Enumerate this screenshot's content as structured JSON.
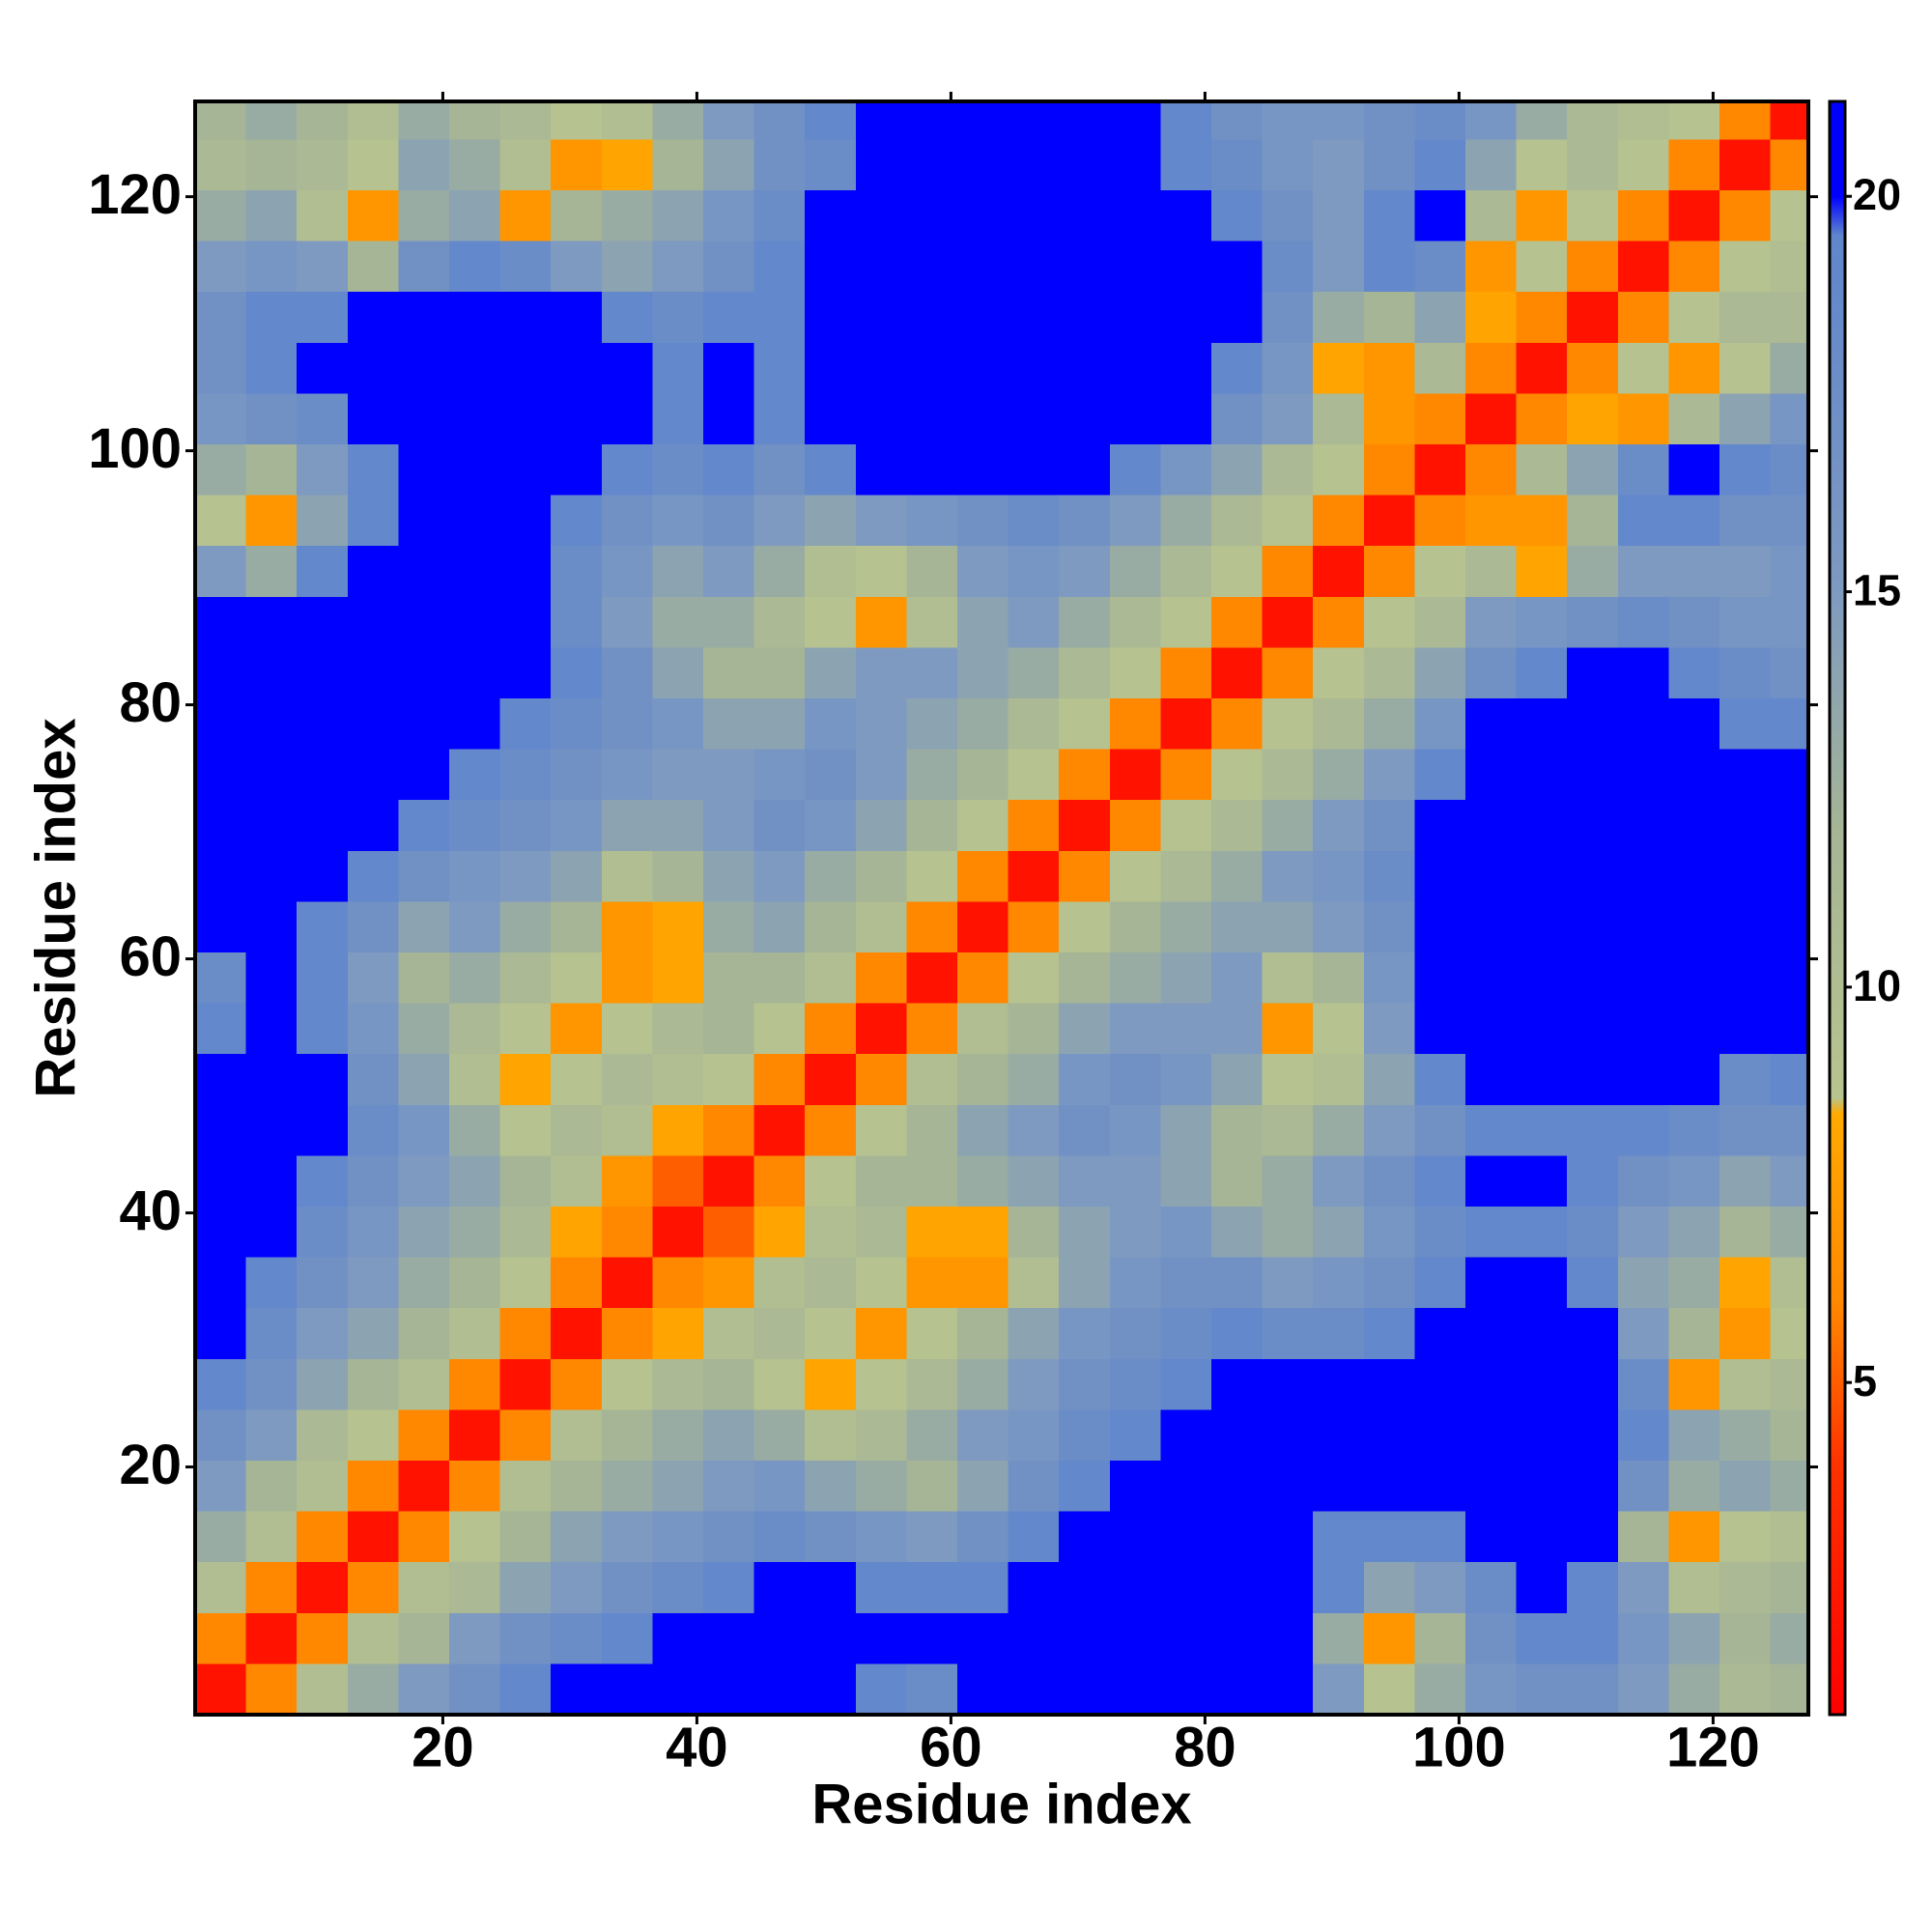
{
  "chart_data": {
    "type": "heatmap",
    "xlabel": "Residue index",
    "ylabel": "Residue index",
    "x_bins": [
      0.5,
      4.5,
      8.5,
      12.5,
      16.5,
      20.5,
      24.5,
      28.5,
      32.5,
      36.5,
      40.5,
      44.5,
      48.5,
      52.5,
      56.5,
      60.5,
      64.5,
      68.5,
      72.5,
      76.5,
      80.5,
      84.5,
      88.5,
      92.5,
      96.5,
      100.5,
      104.5,
      108.5,
      112.5,
      116.5,
      120.5,
      124.5,
      127.5
    ],
    "y_bins": [
      0.5,
      4.5,
      8.5,
      12.5,
      16.5,
      20.5,
      24.5,
      28.5,
      32.5,
      36.5,
      40.5,
      44.5,
      48.5,
      52.5,
      56.5,
      60.5,
      64.5,
      68.5,
      72.5,
      76.5,
      80.5,
      84.5,
      88.5,
      92.5,
      96.5,
      100.5,
      104.5,
      108.5,
      112.5,
      116.5,
      120.5,
      124.5,
      127.5
    ],
    "values": [
      [
        2,
        6,
        10,
        13,
        15,
        17,
        19,
        20,
        21,
        21,
        21,
        21,
        20,
        19,
        18,
        20,
        21,
        21,
        21,
        21,
        21,
        20,
        15,
        9,
        13,
        16,
        17,
        17,
        15,
        13,
        11,
        12
      ],
      [
        6,
        2,
        6,
        10,
        12,
        15,
        17,
        18,
        19,
        20,
        21,
        21,
        21,
        20,
        20,
        21,
        21,
        21,
        21,
        21,
        21,
        21,
        13,
        7,
        12,
        17,
        19,
        19,
        16,
        14,
        12,
        13
      ],
      [
        10,
        6,
        2,
        6,
        10,
        11,
        14,
        15,
        17,
        18,
        19,
        20,
        20,
        19,
        19,
        19,
        21,
        21,
        21,
        21,
        21,
        21,
        19,
        14,
        15,
        18,
        20,
        19,
        15,
        10,
        11,
        12
      ],
      [
        13,
        10,
        6,
        2,
        6,
        9,
        12,
        14,
        15,
        16,
        17,
        18,
        17,
        16,
        15,
        17,
        19,
        21,
        21,
        21,
        21,
        21,
        19,
        19,
        19,
        21,
        21,
        21,
        12,
        7,
        9,
        10
      ],
      [
        15,
        12,
        10,
        6,
        2,
        6,
        10,
        12,
        13,
        14,
        15,
        16,
        14,
        13,
        12,
        14,
        17,
        19,
        21,
        21,
        21,
        21,
        21,
        21,
        21,
        21,
        21,
        21,
        17,
        13,
        14,
        13
      ],
      [
        17,
        15,
        11,
        9,
        6,
        2,
        6,
        10,
        12,
        13,
        14,
        13,
        10,
        11,
        13,
        15,
        16,
        18,
        19,
        20,
        21,
        21,
        21,
        21,
        21,
        21,
        21,
        21,
        19,
        14,
        13,
        12
      ],
      [
        19,
        17,
        14,
        12,
        10,
        6,
        2,
        6,
        9,
        11,
        12,
        9,
        8,
        9,
        11,
        13,
        15,
        17,
        18,
        19,
        20,
        20,
        20,
        21,
        21,
        21,
        21,
        21,
        18,
        7,
        10,
        11
      ],
      [
        20,
        18,
        15,
        14,
        12,
        10,
        6,
        2,
        6,
        8,
        10,
        11,
        9,
        7,
        9,
        12,
        14,
        16,
        17,
        18,
        19,
        18,
        18,
        19,
        20,
        21,
        21,
        20,
        15,
        12,
        7,
        9
      ],
      [
        21,
        19,
        17,
        15,
        13,
        12,
        9,
        6,
        2,
        6,
        7,
        10,
        11,
        9,
        7,
        7,
        10,
        14,
        16,
        17,
        17,
        15,
        16,
        17,
        19,
        20,
        20,
        19,
        14,
        13,
        8,
        10
      ],
      [
        21,
        20,
        18,
        16,
        14,
        13,
        11,
        8,
        6,
        2,
        5,
        8,
        10,
        11,
        8,
        8,
        12,
        14,
        15,
        16,
        14,
        13,
        14,
        16,
        18,
        19,
        19,
        18,
        15,
        14,
        12,
        13
      ],
      [
        21,
        21,
        19,
        17,
        15,
        14,
        12,
        10,
        7,
        5,
        2,
        6,
        9,
        12,
        12,
        13,
        14,
        15,
        15,
        14,
        12,
        13,
        15,
        17,
        19,
        20,
        20,
        19,
        17,
        16,
        14,
        15
      ],
      [
        21,
        21,
        20,
        18,
        16,
        13,
        9,
        11,
        10,
        8,
        6,
        2,
        6,
        9,
        12,
        14,
        15,
        17,
        16,
        14,
        12,
        11,
        13,
        15,
        17,
        19,
        19,
        19,
        19,
        18,
        17,
        17
      ],
      [
        20,
        21,
        20,
        17,
        14,
        10,
        8,
        9,
        11,
        10,
        9,
        6,
        2,
        6,
        10,
        12,
        13,
        16,
        17,
        16,
        14,
        9,
        10,
        14,
        19,
        20,
        21,
        21,
        21,
        20,
        18,
        19
      ],
      [
        19,
        20,
        19,
        16,
        13,
        11,
        9,
        7,
        9,
        11,
        12,
        9,
        6,
        2,
        6,
        10,
        12,
        14,
        15,
        15,
        15,
        7,
        9,
        15,
        21,
        21,
        21,
        21,
        21,
        21,
        20,
        20
      ],
      [
        18,
        20,
        19,
        15,
        12,
        13,
        11,
        9,
        7,
        8,
        12,
        12,
        10,
        6,
        2,
        6,
        9,
        12,
        13,
        14,
        15,
        10,
        12,
        16,
        21,
        21,
        21,
        21,
        21,
        21,
        21,
        21
      ],
      [
        20,
        21,
        19,
        17,
        14,
        15,
        13,
        12,
        7,
        8,
        13,
        14,
        12,
        10,
        6,
        2,
        6,
        9,
        12,
        13,
        14,
        14,
        15,
        17,
        21,
        21,
        21,
        21,
        21,
        21,
        21,
        21
      ],
      [
        21,
        21,
        21,
        19,
        17,
        16,
        15,
        14,
        10,
        12,
        14,
        15,
        13,
        12,
        9,
        6,
        2,
        6,
        9,
        11,
        13,
        15,
        16,
        18,
        21,
        21,
        21,
        21,
        21,
        21,
        21,
        21
      ],
      [
        21,
        21,
        21,
        21,
        19,
        18,
        17,
        16,
        14,
        14,
        15,
        17,
        16,
        14,
        12,
        9,
        6,
        2,
        6,
        9,
        11,
        13,
        15,
        17,
        21,
        21,
        21,
        21,
        21,
        21,
        21,
        21
      ],
      [
        21,
        21,
        21,
        21,
        21,
        19,
        18,
        17,
        16,
        15,
        15,
        16,
        17,
        15,
        13,
        12,
        9,
        6,
        2,
        6,
        9,
        11,
        13,
        15,
        19,
        21,
        21,
        21,
        21,
        21,
        20,
        20
      ],
      [
        21,
        21,
        21,
        21,
        21,
        20,
        19,
        18,
        17,
        16,
        14,
        14,
        16,
        15,
        14,
        13,
        11,
        9,
        6,
        2,
        6,
        9,
        11,
        13,
        16,
        20,
        21,
        21,
        21,
        20,
        19,
        19
      ],
      [
        21,
        21,
        21,
        21,
        21,
        21,
        20,
        19,
        17,
        14,
        12,
        12,
        14,
        15,
        15,
        14,
        13,
        11,
        9,
        6,
        2,
        6,
        9,
        11,
        14,
        17,
        19,
        20,
        20,
        19,
        18,
        17
      ],
      [
        20,
        21,
        21,
        21,
        21,
        21,
        20,
        18,
        15,
        13,
        13,
        11,
        9,
        7,
        10,
        14,
        15,
        13,
        11,
        9,
        6,
        2,
        6,
        9,
        11,
        15,
        16,
        17,
        18,
        17,
        16,
        16
      ],
      [
        15,
        13,
        19,
        21,
        21,
        21,
        20,
        18,
        16,
        14,
        15,
        13,
        10,
        9,
        12,
        15,
        16,
        15,
        13,
        11,
        9,
        6,
        2,
        6,
        9,
        11,
        8,
        13,
        15,
        15,
        15,
        16
      ],
      [
        9,
        7,
        14,
        19,
        21,
        21,
        21,
        19,
        17,
        16,
        17,
        15,
        14,
        15,
        16,
        17,
        18,
        17,
        15,
        13,
        11,
        9,
        6,
        2,
        6,
        7,
        7,
        12,
        19,
        19,
        17,
        17
      ],
      [
        13,
        12,
        15,
        19,
        21,
        21,
        21,
        20,
        19,
        18,
        19,
        17,
        19,
        21,
        21,
        21,
        21,
        21,
        19,
        16,
        14,
        11,
        9,
        6,
        2,
        6,
        11,
        14,
        18,
        20,
        19,
        18
      ],
      [
        16,
        17,
        18,
        21,
        21,
        21,
        21,
        21,
        20,
        19,
        20,
        19,
        20,
        21,
        21,
        21,
        21,
        21,
        21,
        20,
        17,
        15,
        11,
        7,
        6,
        2,
        6,
        8,
        7,
        11,
        14,
        16
      ],
      [
        17,
        19,
        20,
        21,
        21,
        21,
        21,
        21,
        20,
        19,
        20,
        19,
        21,
        21,
        21,
        21,
        21,
        21,
        21,
        21,
        19,
        16,
        8,
        7,
        11,
        6,
        2,
        6,
        9,
        7,
        9,
        13
      ],
      [
        17,
        19,
        19,
        21,
        21,
        21,
        21,
        20,
        19,
        18,
        19,
        19,
        21,
        21,
        21,
        21,
        21,
        21,
        21,
        21,
        20,
        17,
        13,
        12,
        14,
        8,
        6,
        2,
        6,
        9,
        11,
        11
      ],
      [
        15,
        16,
        15,
        12,
        17,
        19,
        18,
        15,
        14,
        15,
        17,
        19,
        21,
        21,
        21,
        21,
        21,
        21,
        21,
        21,
        20,
        18,
        15,
        19,
        18,
        7,
        9,
        6,
        2,
        6,
        9,
        10
      ],
      [
        13,
        14,
        10,
        7,
        13,
        14,
        7,
        12,
        13,
        14,
        16,
        18,
        20,
        21,
        21,
        21,
        21,
        21,
        21,
        20,
        19,
        17,
        15,
        19,
        20,
        11,
        7,
        9,
        6,
        2,
        6,
        9
      ],
      [
        11,
        12,
        11,
        9,
        14,
        13,
        10,
        7,
        8,
        12,
        14,
        17,
        18,
        20,
        21,
        21,
        21,
        21,
        20,
        19,
        18,
        16,
        15,
        17,
        19,
        14,
        9,
        11,
        9,
        6,
        2,
        6
      ],
      [
        12,
        13,
        12,
        10,
        13,
        12,
        11,
        9,
        10,
        13,
        15,
        17,
        19,
        20,
        21,
        21,
        21,
        21,
        20,
        19,
        17,
        16,
        16,
        17,
        18,
        16,
        13,
        11,
        10,
        9,
        6,
        2
      ]
    ],
    "xlim": [
      0.5,
      127.5
    ],
    "ylim": [
      0.5,
      127.5
    ],
    "xticks": [
      20,
      40,
      60,
      80,
      100,
      120
    ],
    "yticks": [
      20,
      40,
      60,
      80,
      100,
      120
    ],
    "colorscale": [
      [
        0.8,
        "#ff0000"
      ],
      [
        4,
        "#ff3300"
      ],
      [
        6,
        "#ff8800"
      ],
      [
        8.4,
        "#ffaa00"
      ],
      [
        8.6,
        "#b8c48e"
      ],
      [
        12,
        "#a5b596"
      ],
      [
        15,
        "#7f9ac0"
      ],
      [
        19.5,
        "#5f86cc"
      ],
      [
        20,
        "#0000ff"
      ],
      [
        21.2,
        "#0000ff"
      ]
    ],
    "clim": [
      0.8,
      21.2
    ],
    "cticks": [
      5,
      10,
      15,
      20
    ]
  }
}
